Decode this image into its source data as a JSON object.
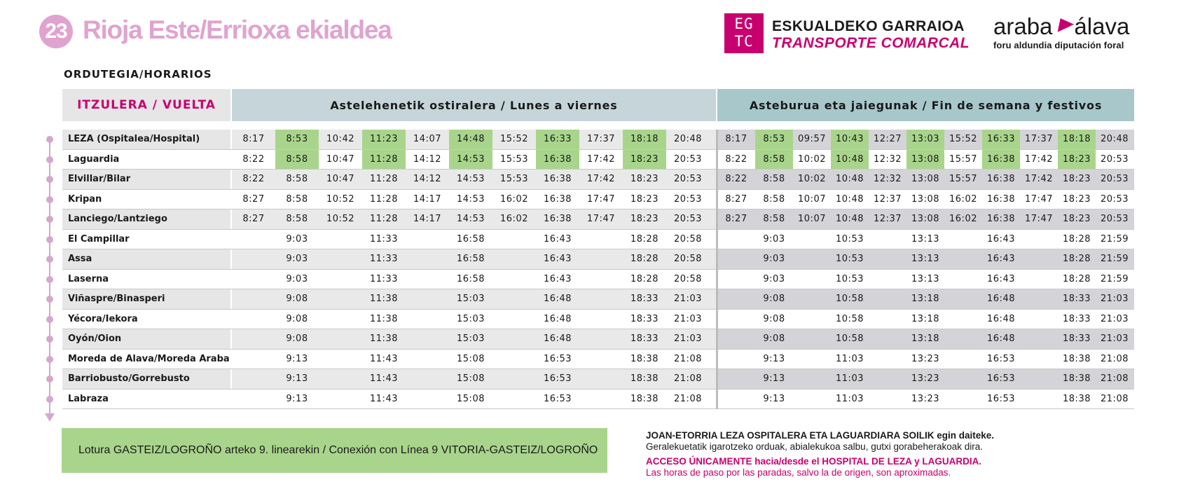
{
  "header": {
    "line_number": "23",
    "line_title": "Rioja Este/Errioxa ekialdea",
    "operator_logo": "EG TC",
    "operator_line1": "ESKUALDEKO GARRAIOA",
    "operator_line2": "TRANSPORTE COMARCAL",
    "brand_left": "araba",
    "brand_right": "álava",
    "brand_sub": "foru aldundia  diputación foral",
    "accent_color": "#c8006f",
    "line_color": "#e0a3cf"
  },
  "section_title": "ORDUTEGIA/HORARIOS",
  "table": {
    "route_header": "ITZULERA / VUELTA",
    "weekday_header": "Astelehenetik ostiralera / Lunes a viernes",
    "weekend_header": "Asteburua eta jaiegunak / Fin de semana y festivos",
    "highlight_color": "#a8d58b",
    "rows": [
      {
        "stop": "LEZA (Ospitalea/Hospital)",
        "weekday": [
          "8:17",
          "8:53",
          "10:42",
          "11:23",
          "14:07",
          "14:48",
          "15:52",
          "16:33",
          "17:37",
          "18:18",
          "20:48"
        ],
        "weekend": [
          "8:17",
          "8:53",
          "09:57",
          "10:43",
          "12:27",
          "13:03",
          "15:52",
          "16:33",
          "17:37",
          "18:18",
          "20:48"
        ]
      },
      {
        "stop": "Laguardia",
        "weekday": [
          "8:22",
          "8:58",
          "10:47",
          "11:28",
          "14:12",
          "14:53",
          "15:53",
          "16:38",
          "17:42",
          "18:23",
          "20:53"
        ],
        "weekend": [
          "8:22",
          "8:58",
          "10:02",
          "10:48",
          "12:32",
          "13:08",
          "15:57",
          "16:38",
          "17:42",
          "18:23",
          "20:53"
        ]
      },
      {
        "stop": "Elvillar/Bilar",
        "weekday": [
          "8:22",
          "8:58",
          "10:47",
          "11:28",
          "14:12",
          "14:53",
          "15:53",
          "16:38",
          "17:42",
          "18:23",
          "20:53"
        ],
        "weekend": [
          "8:22",
          "8:58",
          "10:02",
          "10:48",
          "12:32",
          "13:08",
          "15:57",
          "16:38",
          "17:42",
          "18:23",
          "20:53"
        ]
      },
      {
        "stop": "Kripan",
        "weekday": [
          "8:27",
          "8:58",
          "10:52",
          "11:28",
          "14:17",
          "14:53",
          "16:02",
          "16:38",
          "17:47",
          "18:23",
          "20:53"
        ],
        "weekend": [
          "8:27",
          "8:58",
          "10:07",
          "10:48",
          "12:37",
          "13:08",
          "16:02",
          "16:38",
          "17:47",
          "18:23",
          "20:53"
        ]
      },
      {
        "stop": "Lanciego/Lantziego",
        "weekday": [
          "8:27",
          "8:58",
          "10:52",
          "11:28",
          "14:17",
          "14:53",
          "16:02",
          "16:38",
          "17:47",
          "18:23",
          "20:53"
        ],
        "weekend": [
          "8:27",
          "8:58",
          "10:07",
          "10:48",
          "12:37",
          "13:08",
          "16:02",
          "16:38",
          "17:47",
          "18:23",
          "20:53"
        ]
      },
      {
        "stop": "El Campillar",
        "weekday": [
          "",
          "9:03",
          "",
          "11:33",
          "",
          "16:58",
          "",
          "16:43",
          "",
          "18:28",
          "20:58"
        ],
        "weekend": [
          "",
          "9:03",
          "",
          "10:53",
          "",
          "13:13",
          "",
          "16:43",
          "",
          "18:28",
          "21:59"
        ]
      },
      {
        "stop": "Assa",
        "weekday": [
          "",
          "9:03",
          "",
          "11:33",
          "",
          "16:58",
          "",
          "16:43",
          "",
          "18:28",
          "20:58"
        ],
        "weekend": [
          "",
          "9:03",
          "",
          "10:53",
          "",
          "13:13",
          "",
          "16:43",
          "",
          "18:28",
          "21:59"
        ]
      },
      {
        "stop": "Laserna",
        "weekday": [
          "",
          "9:03",
          "",
          "11:33",
          "",
          "16:58",
          "",
          "16:43",
          "",
          "18:28",
          "20:58"
        ],
        "weekend": [
          "",
          "9:03",
          "",
          "10:53",
          "",
          "13:13",
          "",
          "16:43",
          "",
          "18:28",
          "21:59"
        ]
      },
      {
        "stop": "Viñaspre/Binasperi",
        "weekday": [
          "",
          "9:08",
          "",
          "11:38",
          "",
          "15:03",
          "",
          "16:48",
          "",
          "18:33",
          "21:03"
        ],
        "weekend": [
          "",
          "9:08",
          "",
          "10:58",
          "",
          "13:18",
          "",
          "16:48",
          "",
          "18:33",
          "21:03"
        ]
      },
      {
        "stop": "Yécora/Iekora",
        "weekday": [
          "",
          "9:08",
          "",
          "11:38",
          "",
          "15:03",
          "",
          "16:48",
          "",
          "18:33",
          "21:03"
        ],
        "weekend": [
          "",
          "9:08",
          "",
          "10:58",
          "",
          "13:18",
          "",
          "16:48",
          "",
          "18:33",
          "21:03"
        ]
      },
      {
        "stop": "Oyón/Oion",
        "weekday": [
          "",
          "9:08",
          "",
          "11:38",
          "",
          "15:03",
          "",
          "16:48",
          "",
          "18:33",
          "21:03"
        ],
        "weekend": [
          "",
          "9:08",
          "",
          "10:58",
          "",
          "13:18",
          "",
          "16:48",
          "",
          "18:33",
          "21:03"
        ]
      },
      {
        "stop": "Moreda de Alava/Moreda Araba",
        "weekday": [
          "",
          "9:13",
          "",
          "11:43",
          "",
          "15:08",
          "",
          "16:53",
          "",
          "18:38",
          "21:08"
        ],
        "weekend": [
          "",
          "9:13",
          "",
          "11:03",
          "",
          "13:23",
          "",
          "16:53",
          "",
          "18:38",
          "21:08"
        ]
      },
      {
        "stop": "Barriobusto/Gorrebusto",
        "weekday": [
          "",
          "9:13",
          "",
          "11:43",
          "",
          "15:08",
          "",
          "16:53",
          "",
          "18:38",
          "21:08"
        ],
        "weekend": [
          "",
          "9:13",
          "",
          "11:03",
          "",
          "13:23",
          "",
          "16:53",
          "",
          "18:38",
          "21:08"
        ]
      },
      {
        "stop": "Labraza",
        "weekday": [
          "",
          "9:13",
          "",
          "11:43",
          "",
          "15:08",
          "",
          "16:53",
          "",
          "18:38",
          "21:08"
        ],
        "weekend": [
          "",
          "9:13",
          "",
          "11:03",
          "",
          "13:23",
          "",
          "16:53",
          "",
          "18:38",
          "21:08"
        ]
      }
    ]
  },
  "footer": {
    "connection": "Lotura GASTEIZ/LOGROÑO arteko 9. linearekin / Conexión con Línea 9 VITORIA-GASTEIZ/LOGROÑO",
    "note_eu_bold": "JOAN-ETORRIA LEZA OSPITALERA ETA LAGUARDIARA SOILIK egin daiteke.",
    "note_eu": "Geralekuetatik igarotzeko orduak, abialekukoa salbu, gutxi gorabeherakoak dira.",
    "note_es_bold": "ACCESO ÚNICAMENTE hacia/desde el HOSPITAL DE LEZA y LAGUARDIA.",
    "note_es": "Las horas de paso por las paradas, salvo la de origen, son aproximadas."
  }
}
